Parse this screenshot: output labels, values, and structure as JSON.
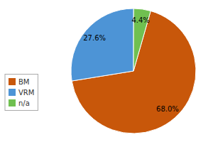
{
  "chart_data": {
    "type": "pie",
    "categories": [
      "BM",
      "VRM",
      "n/a"
    ],
    "values": [
      68.0,
      27.6,
      4.4
    ],
    "value_labels": [
      "68.0%",
      "27.6%",
      "4.4%"
    ],
    "colors": [
      "#c8570a",
      "#4d94d6",
      "#70c050"
    ],
    "data_labels": true,
    "legend": "left"
  }
}
